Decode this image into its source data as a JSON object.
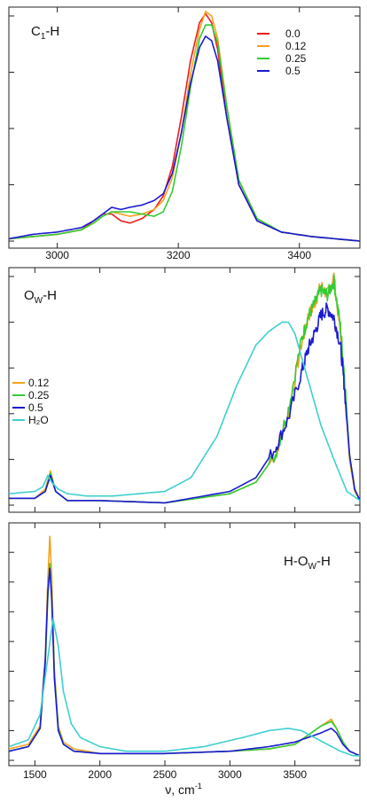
{
  "xlabel_main": "ν, cm",
  "xlabel_sup": "-1",
  "chart_data": [
    {
      "type": "line",
      "panel_label": {
        "main": "C",
        "sub": "1",
        "rest": "-H"
      },
      "xlim": [
        2920,
        3500
      ],
      "ylim": [
        0,
        1.0
      ],
      "xticks": [
        3000,
        3200,
        3400
      ],
      "xticklabels": [
        "3000",
        "3200",
        "3400"
      ],
      "yticks": [
        0,
        0.25,
        0.5,
        0.75,
        1.0
      ],
      "legend": {
        "placement": "top-right"
      },
      "series": [
        {
          "name": "0.0",
          "color": "#ee1c1c",
          "x": [
            2920,
            2960,
            3000,
            3040,
            3060,
            3075,
            3090,
            3105,
            3120,
            3140,
            3160,
            3175,
            3190,
            3205,
            3220,
            3235,
            3245,
            3255,
            3265,
            3280,
            3300,
            3330,
            3370,
            3420,
            3500
          ],
          "y": [
            0.01,
            0.02,
            0.03,
            0.05,
            0.09,
            0.12,
            0.12,
            0.09,
            0.08,
            0.1,
            0.14,
            0.2,
            0.33,
            0.55,
            0.8,
            0.97,
            1.01,
            0.97,
            0.85,
            0.55,
            0.25,
            0.09,
            0.04,
            0.02,
            0.0
          ]
        },
        {
          "name": "0.12",
          "color": "#f5a21c",
          "x": [
            2920,
            2960,
            3000,
            3040,
            3060,
            3075,
            3090,
            3105,
            3120,
            3140,
            3160,
            3175,
            3190,
            3205,
            3220,
            3235,
            3245,
            3255,
            3265,
            3280,
            3300,
            3330,
            3370,
            3420,
            3500
          ],
          "y": [
            0.01,
            0.02,
            0.03,
            0.05,
            0.08,
            0.11,
            0.13,
            0.12,
            0.11,
            0.12,
            0.14,
            0.18,
            0.28,
            0.48,
            0.74,
            0.94,
            1.02,
            1.0,
            0.9,
            0.6,
            0.27,
            0.1,
            0.04,
            0.02,
            0.0
          ]
        },
        {
          "name": "0.25",
          "color": "#33cc33",
          "x": [
            2920,
            2960,
            3000,
            3040,
            3060,
            3075,
            3090,
            3105,
            3120,
            3140,
            3160,
            3175,
            3190,
            3205,
            3220,
            3235,
            3245,
            3255,
            3265,
            3280,
            3300,
            3330,
            3370,
            3420,
            3500
          ],
          "y": [
            0.01,
            0.02,
            0.03,
            0.05,
            0.08,
            0.11,
            0.13,
            0.13,
            0.13,
            0.12,
            0.11,
            0.13,
            0.22,
            0.42,
            0.68,
            0.9,
            0.96,
            0.96,
            0.88,
            0.6,
            0.27,
            0.1,
            0.04,
            0.02,
            0.0
          ]
        },
        {
          "name": "0.5",
          "color": "#1a1ad4",
          "x": [
            2920,
            2960,
            3000,
            3040,
            3060,
            3075,
            3090,
            3105,
            3120,
            3140,
            3160,
            3175,
            3190,
            3205,
            3220,
            3235,
            3245,
            3255,
            3265,
            3280,
            3300,
            3330,
            3370,
            3420,
            3500
          ],
          "y": [
            0.01,
            0.03,
            0.04,
            0.06,
            0.09,
            0.12,
            0.15,
            0.14,
            0.15,
            0.16,
            0.18,
            0.21,
            0.3,
            0.48,
            0.7,
            0.86,
            0.91,
            0.89,
            0.8,
            0.55,
            0.25,
            0.09,
            0.04,
            0.02,
            0.0
          ]
        }
      ]
    },
    {
      "type": "line",
      "panel_label": {
        "main": "O",
        "sub": "W",
        "rest": "-H"
      },
      "xlim": [
        1300,
        4000
      ],
      "ylim": [
        0,
        1.0
      ],
      "yticks": [
        0,
        0.2,
        0.4,
        0.6,
        0.8,
        1.0
      ],
      "legend": {
        "placement": "left"
      },
      "series": [
        {
          "name": "0.12",
          "color": "#f5a21c",
          "x": [
            1300,
            1500,
            1580,
            1620,
            1660,
            1750,
            2000,
            2500,
            3000,
            3200,
            3350,
            3450,
            3550,
            3600,
            3650,
            3700,
            3750,
            3800,
            3850,
            3880,
            3920,
            3960,
            4000
          ],
          "y": [
            0.03,
            0.03,
            0.07,
            0.15,
            0.06,
            0.02,
            0.02,
            0.01,
            0.05,
            0.1,
            0.22,
            0.4,
            0.7,
            0.82,
            0.88,
            0.96,
            0.92,
            1.0,
            0.75,
            0.55,
            0.2,
            0.06,
            0.02
          ],
          "noisy": true
        },
        {
          "name": "0.25",
          "color": "#33cc33",
          "x": [
            1300,
            1500,
            1580,
            1620,
            1660,
            1750,
            2000,
            2500,
            3000,
            3200,
            3350,
            3450,
            3550,
            3600,
            3650,
            3700,
            3750,
            3800,
            3850,
            3880,
            3920,
            3960,
            4000
          ],
          "y": [
            0.03,
            0.03,
            0.06,
            0.14,
            0.06,
            0.02,
            0.02,
            0.01,
            0.05,
            0.1,
            0.22,
            0.42,
            0.72,
            0.82,
            0.88,
            0.94,
            0.92,
            0.98,
            0.78,
            0.58,
            0.22,
            0.07,
            0.02
          ],
          "noisy": true
        },
        {
          "name": "0.5",
          "color": "#1a1ad4",
          "x": [
            1300,
            1500,
            1580,
            1620,
            1660,
            1750,
            2000,
            2500,
            3000,
            3200,
            3350,
            3450,
            3550,
            3600,
            3650,
            3700,
            3750,
            3800,
            3850,
            3880,
            3920,
            3960,
            4000
          ],
          "y": [
            0.03,
            0.03,
            0.06,
            0.13,
            0.06,
            0.02,
            0.02,
            0.01,
            0.06,
            0.12,
            0.25,
            0.38,
            0.58,
            0.68,
            0.75,
            0.83,
            0.86,
            0.82,
            0.7,
            0.52,
            0.22,
            0.07,
            0.02
          ],
          "noisy": true
        },
        {
          "name": "H₂O",
          "color": "#3fcfcf",
          "x": [
            1300,
            1500,
            1560,
            1600,
            1630,
            1680,
            1750,
            1900,
            2100,
            2300,
            2500,
            2700,
            2900,
            3050,
            3200,
            3300,
            3400,
            3450,
            3500,
            3600,
            3700,
            3800,
            3900,
            4000
          ],
          "y": [
            0.05,
            0.06,
            0.08,
            0.13,
            0.1,
            0.07,
            0.05,
            0.04,
            0.04,
            0.05,
            0.06,
            0.12,
            0.3,
            0.52,
            0.7,
            0.76,
            0.8,
            0.8,
            0.75,
            0.55,
            0.35,
            0.2,
            0.06,
            0.02
          ]
        }
      ]
    },
    {
      "type": "line",
      "panel_label": {
        "main": "H-O",
        "sub": "W",
        "rest": "-H"
      },
      "xlim": [
        1300,
        4000
      ],
      "ylim": [
        0,
        1.0
      ],
      "xticks": [
        1500,
        2000,
        2500,
        3000,
        3500
      ],
      "xticklabels": [
        "1500",
        "2000",
        "2500",
        "3000",
        "3500"
      ],
      "yticks": [
        0,
        0.13,
        0.26,
        0.39,
        0.52,
        0.65,
        0.78,
        0.91
      ],
      "series": [
        {
          "name": "0.12",
          "color": "#f5a21c",
          "x": [
            1300,
            1450,
            1540,
            1580,
            1600,
            1615,
            1630,
            1650,
            1680,
            1720,
            1800,
            2000,
            2500,
            3000,
            3300,
            3500,
            3600,
            3700,
            3780,
            3820,
            3870,
            3920,
            4000
          ],
          "y": [
            0.05,
            0.07,
            0.15,
            0.45,
            0.8,
            0.98,
            0.8,
            0.4,
            0.15,
            0.08,
            0.05,
            0.03,
            0.03,
            0.04,
            0.05,
            0.07,
            0.11,
            0.15,
            0.18,
            0.14,
            0.08,
            0.04,
            0.02
          ]
        },
        {
          "name": "0.25",
          "color": "#33cc33",
          "x": [
            1300,
            1450,
            1540,
            1580,
            1600,
            1615,
            1630,
            1650,
            1680,
            1720,
            1800,
            2000,
            2500,
            3000,
            3300,
            3500,
            3600,
            3700,
            3780,
            3820,
            3870,
            3920,
            4000
          ],
          "y": [
            0.04,
            0.06,
            0.14,
            0.42,
            0.72,
            0.86,
            0.72,
            0.38,
            0.14,
            0.07,
            0.04,
            0.03,
            0.03,
            0.04,
            0.05,
            0.07,
            0.11,
            0.15,
            0.17,
            0.14,
            0.08,
            0.04,
            0.02
          ]
        },
        {
          "name": "0.5",
          "color": "#1a1ad4",
          "x": [
            1300,
            1450,
            1540,
            1580,
            1600,
            1615,
            1630,
            1650,
            1680,
            1720,
            1800,
            2000,
            2500,
            3000,
            3300,
            3500,
            3600,
            3700,
            3780,
            3820,
            3870,
            3920,
            4000
          ],
          "y": [
            0.04,
            0.06,
            0.14,
            0.44,
            0.74,
            0.84,
            0.7,
            0.36,
            0.13,
            0.07,
            0.04,
            0.03,
            0.03,
            0.04,
            0.06,
            0.08,
            0.1,
            0.12,
            0.14,
            0.12,
            0.07,
            0.04,
            0.02
          ]
        },
        {
          "name": "H₂O",
          "color": "#3fcfcf",
          "x": [
            1300,
            1450,
            1540,
            1600,
            1640,
            1680,
            1720,
            1780,
            1850,
            2000,
            2200,
            2500,
            2800,
            3100,
            3300,
            3450,
            3550,
            3650,
            3750,
            3850,
            3950,
            4000
          ],
          "y": [
            0.06,
            0.09,
            0.2,
            0.45,
            0.62,
            0.5,
            0.3,
            0.16,
            0.1,
            0.06,
            0.04,
            0.04,
            0.06,
            0.1,
            0.13,
            0.14,
            0.13,
            0.1,
            0.07,
            0.04,
            0.02,
            0.02
          ]
        }
      ]
    }
  ]
}
